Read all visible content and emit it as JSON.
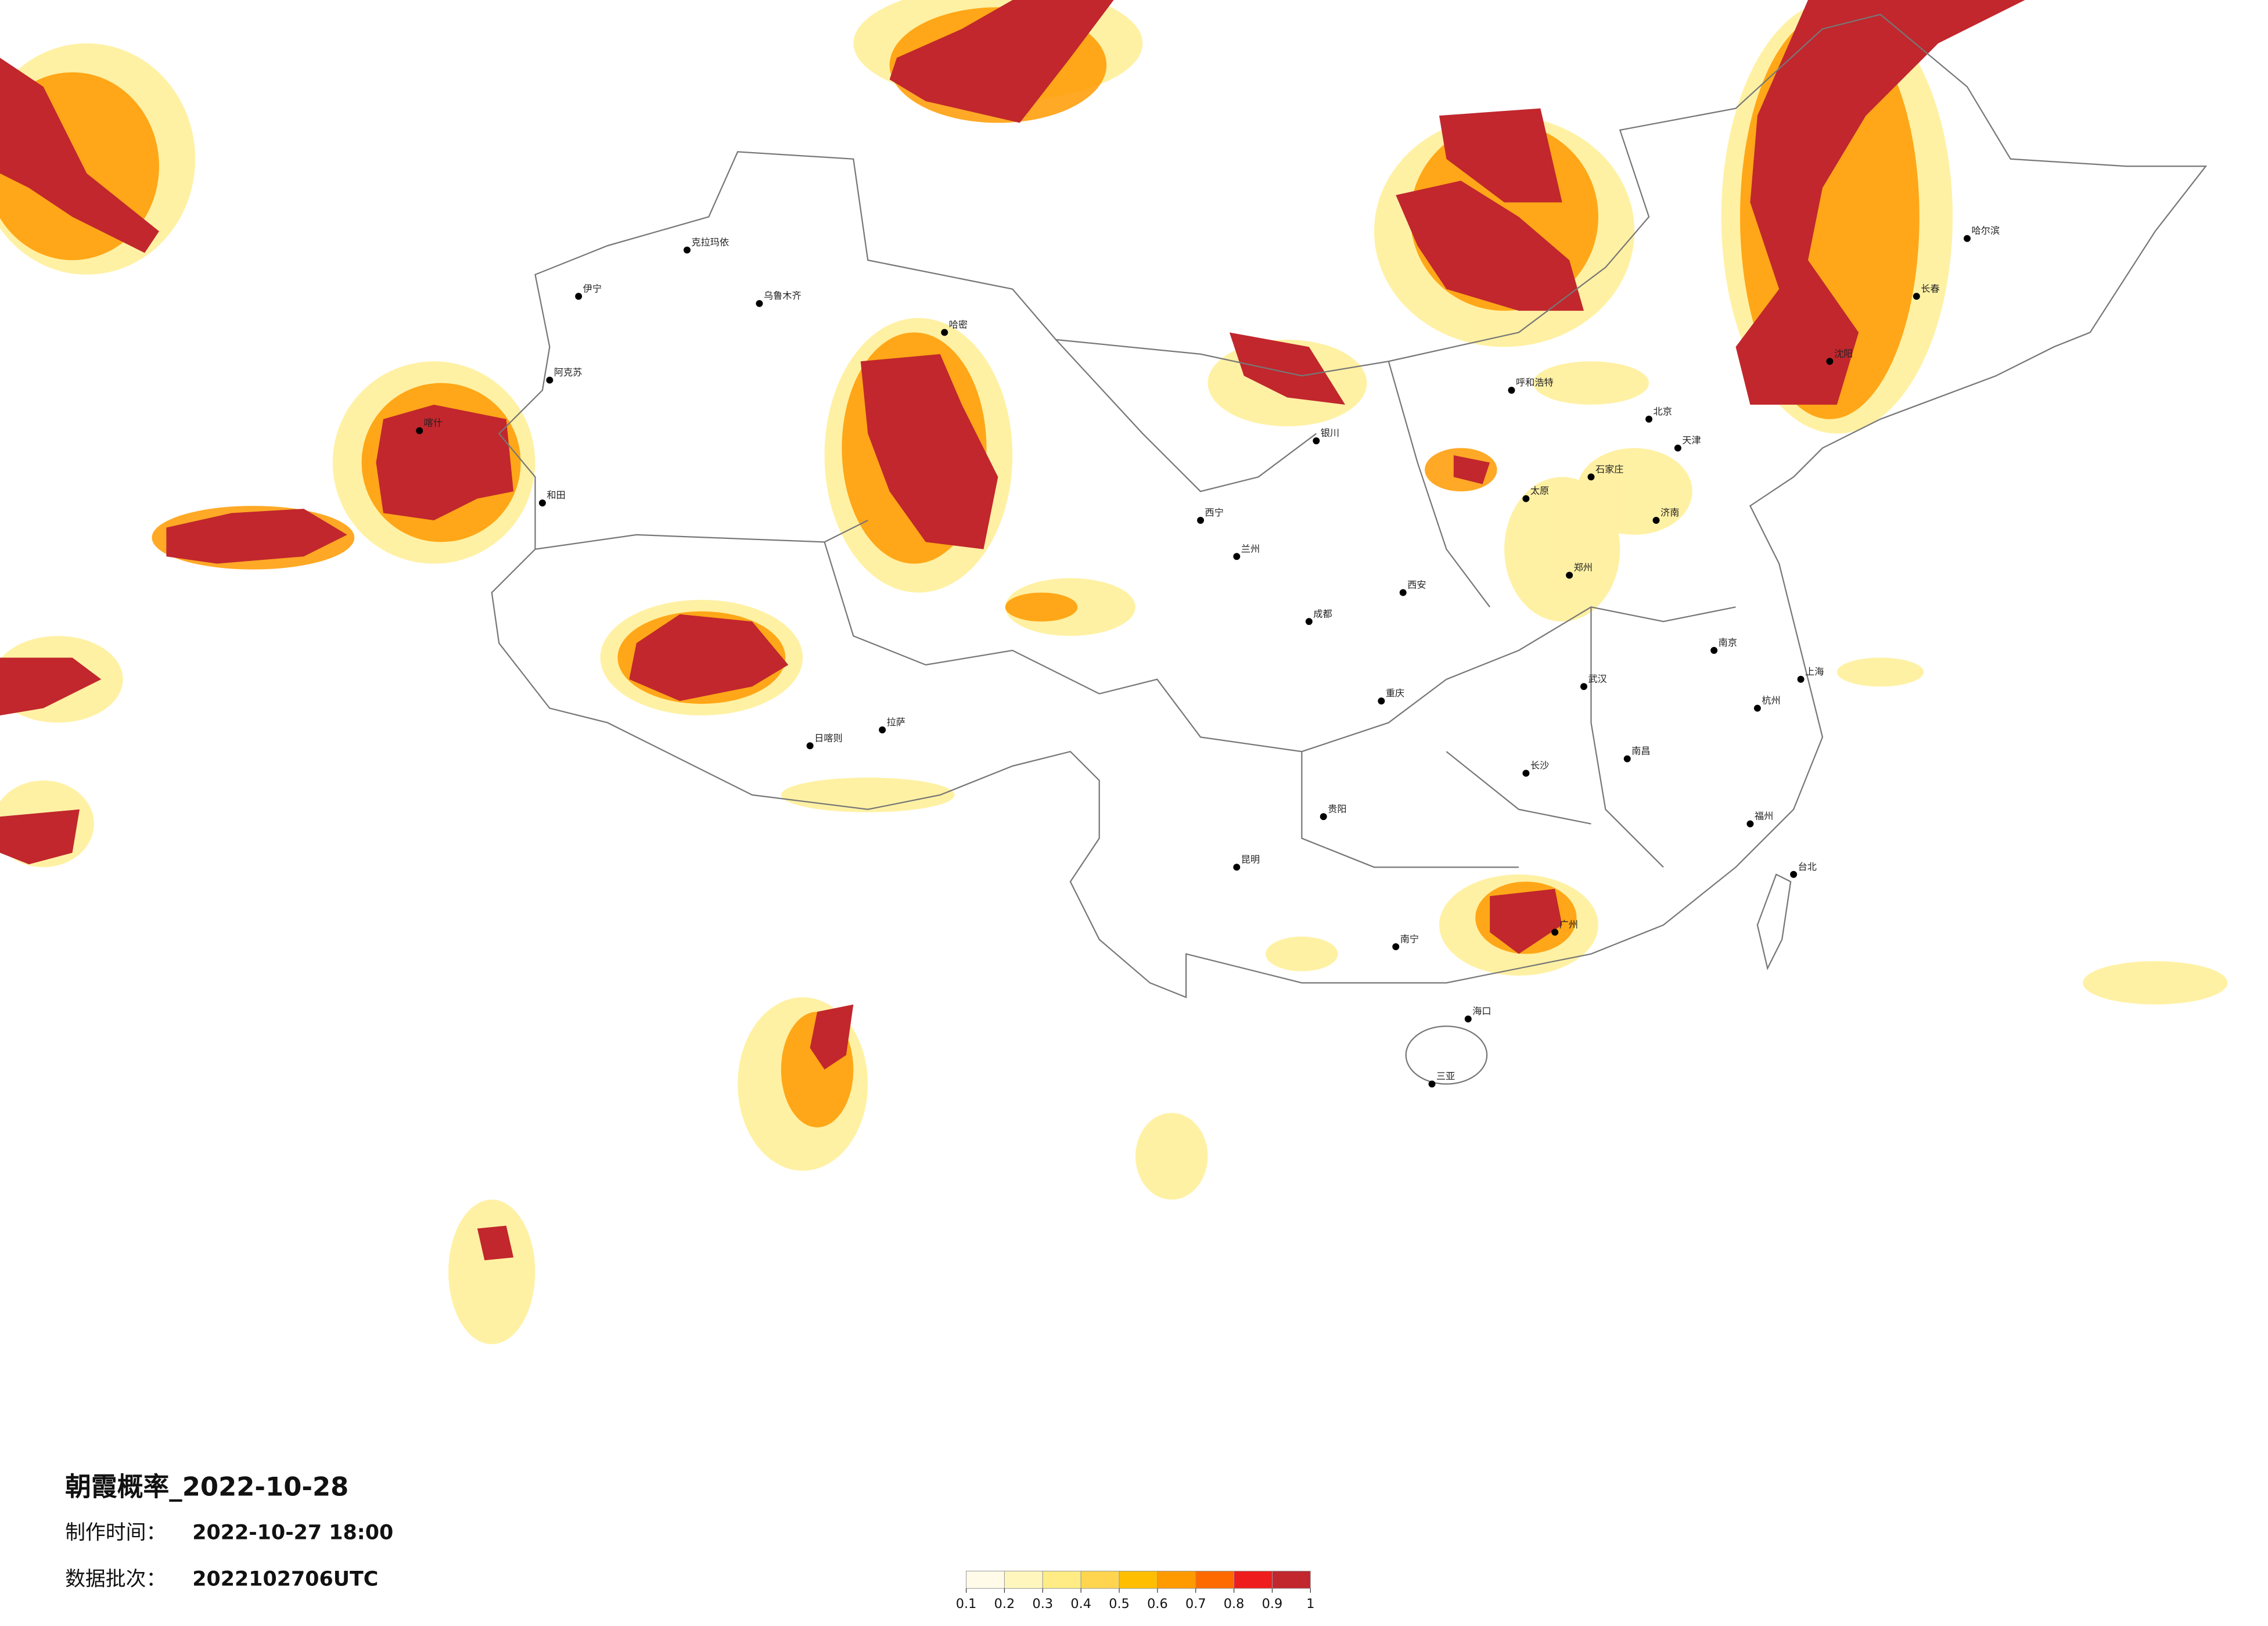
{
  "title": "朝霞概率_2022-10-28",
  "issue_time_label": "制作时间：",
  "issue_time": "2022-10-27 18:00",
  "batch_label": "数据批次：",
  "batch": "2022102706UTC",
  "legend": {
    "ticks": [
      0.1,
      0.2,
      0.3,
      0.4,
      0.5,
      0.6,
      0.7,
      0.8,
      0.9,
      1
    ],
    "colors": [
      "#fffbe8",
      "#fff6bd",
      "#ffec85",
      "#ffd54f",
      "#ffbf00",
      "#ff9a00",
      "#ff6a00",
      "#ee1c1c",
      "#c1272d"
    ]
  },
  "cities": [
    "乌鲁木齐",
    "克拉玛依",
    "伊宁",
    "阿克苏",
    "喀什",
    "和田",
    "哈密",
    "拉萨",
    "日喀则",
    "西宁",
    "兰州",
    "银川",
    "呼和浩特",
    "北京",
    "天津",
    "石家庄",
    "太原",
    "济南",
    "郑州",
    "西安",
    "成都",
    "重庆",
    "武汉",
    "南京",
    "上海",
    "杭州",
    "长沙",
    "南昌",
    "福州",
    "广州",
    "南宁",
    "贵阳",
    "昆明",
    "海口",
    "哈尔滨",
    "长春",
    "沈阳",
    "台北",
    "三亚"
  ]
}
